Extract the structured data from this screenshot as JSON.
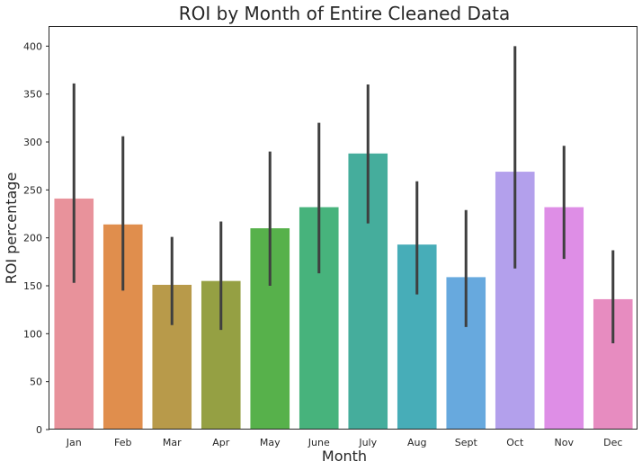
{
  "chart_data": {
    "type": "bar",
    "title": "ROI by Month of Entire Cleaned Data",
    "xlabel": "Month",
    "ylabel": "ROI percentage",
    "categories": [
      "Jan",
      "Feb",
      "Mar",
      "Apr",
      "May",
      "June",
      "July",
      "Aug",
      "Sept",
      "Oct",
      "Nov",
      "Dec"
    ],
    "values": [
      241,
      214,
      151,
      155,
      210,
      232,
      288,
      193,
      159,
      269,
      232,
      136
    ],
    "error_low": [
      153,
      145,
      109,
      104,
      150,
      163,
      215,
      141,
      107,
      168,
      178,
      90
    ],
    "error_high": [
      361,
      306,
      201,
      217,
      290,
      320,
      360,
      259,
      229,
      400,
      296,
      187
    ],
    "colors": [
      "#e8929b",
      "#e08e4d",
      "#b89a4a",
      "#95a043",
      "#57b14b",
      "#47b37c",
      "#45ad9c",
      "#47adb8",
      "#67a9de",
      "#b3a0ec",
      "#de8ee6",
      "#e78cc0"
    ],
    "ylim": [
      0,
      420
    ],
    "yticks": [
      0,
      50,
      100,
      150,
      200,
      250,
      300,
      350,
      400
    ],
    "grid": false,
    "legend": false
  }
}
